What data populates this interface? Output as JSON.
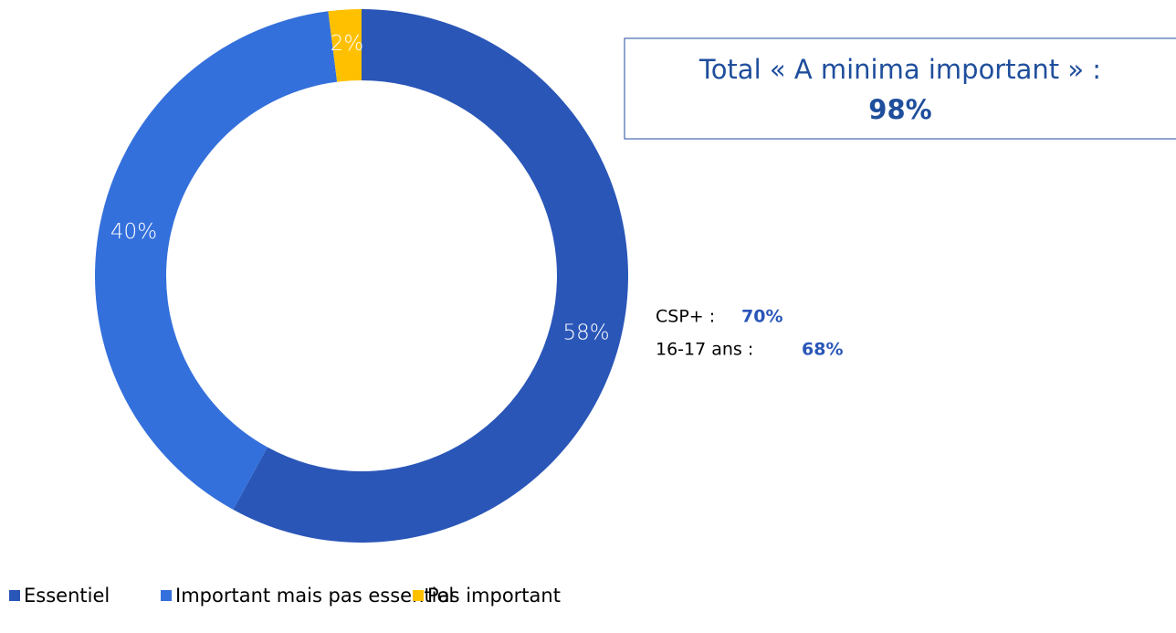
{
  "chart_data": {
    "type": "donut",
    "categories": [
      "Essentiel",
      "Important mais pas essentiel",
      "Pas important"
    ],
    "values": [
      58,
      40,
      2
    ],
    "value_labels": [
      "58%",
      "40%",
      "2%"
    ],
    "colors": [
      "#2a56b8",
      "#3470dc",
      "#ffc000"
    ],
    "annotations": [
      {
        "text": "Total « A minima important » :",
        "value": "98%"
      },
      {
        "text": "CSP+ :",
        "value": "70%"
      },
      {
        "text": "16-17 ans :",
        "value": "68%"
      }
    ],
    "legend": "bottom-left"
  }
}
